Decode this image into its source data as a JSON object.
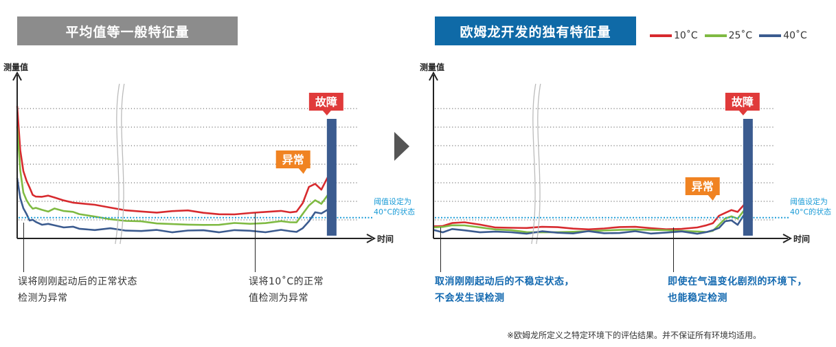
{
  "left_banner": "平均值等一般特征量",
  "right_banner": "欧姆龙开发的独有特征量",
  "legend": [
    {
      "label": "10˚C",
      "color": "#d72a2e"
    },
    {
      "label": "25˚C",
      "color": "#7fba42"
    },
    {
      "label": "40˚C",
      "color": "#3b5b8f"
    }
  ],
  "y_axis_label": "测量值",
  "x_axis_label": "时间",
  "fault_label": "故障",
  "abnormal_label": "异常",
  "threshold_label_1": "阈值设定为",
  "threshold_label_2": "40°C的状态",
  "colors": {
    "fault": "#e03a3a",
    "abnormal": "#f08322",
    "threshold": "#1a9bd7",
    "fault_bar": "#3b5b8f"
  },
  "left_captions": {
    "a_line1": "误将刚刚起动后的正常状态",
    "a_line2": "检测为异常",
    "b_line1": "误将10˚C的正常",
    "b_line2": "值检测为异常"
  },
  "right_captions": {
    "a_line1": "取消刚刚起动后的不稳定状态，",
    "a_line2": "不会发生误检测",
    "b_line1": "即使在气温变化剧烈的环境下，",
    "b_line2": "也能稳定检测"
  },
  "footnote": "※欧姆龙所定义之特定环境下的评估结果。并不保证所有环境均适用。",
  "chart_data": [
    {
      "type": "line",
      "title": "平均值等一般特征量",
      "ylabel": "测量值",
      "xlabel": "时间",
      "x": [
        0,
        1,
        2,
        3,
        4,
        5,
        6,
        8,
        10,
        12,
        15,
        18,
        20,
        25,
        30,
        35,
        40,
        45,
        50,
        55,
        60,
        65,
        70,
        75,
        80,
        85,
        88,
        90,
        92,
        94,
        96,
        98,
        100
      ],
      "xlim": [
        0,
        108
      ],
      "ylim": [
        0,
        100
      ],
      "threshold": 14,
      "series": [
        {
          "name": "10˚C",
          "values": [
            90,
            60,
            45,
            38,
            34,
            30,
            29,
            28,
            28,
            27,
            26,
            25,
            24,
            22,
            20,
            19,
            19,
            18,
            18,
            18,
            17,
            17,
            17,
            17,
            17,
            18,
            18,
            19,
            24,
            34,
            36,
            33,
            42
          ]
        },
        {
          "name": "25˚C",
          "values": [
            75,
            45,
            30,
            25,
            22,
            20,
            21,
            20,
            19,
            21,
            19,
            18,
            16,
            14,
            12,
            11,
            11,
            10,
            10,
            10,
            10,
            10,
            11,
            10,
            10,
            11,
            10,
            10,
            16,
            22,
            26,
            24,
            30
          ]
        },
        {
          "name": "40˚C",
          "values": [
            40,
            28,
            20,
            16,
            13,
            12,
            11,
            10,
            9,
            9,
            8,
            7,
            7,
            6,
            6,
            6,
            5,
            5,
            5,
            5,
            5,
            5,
            5,
            5,
            5,
            5,
            5,
            5,
            6,
            12,
            18,
            16,
            20
          ]
        }
      ],
      "fault_bar": {
        "x": 100,
        "value": 100
      }
    },
    {
      "type": "line",
      "title": "欧姆龙开发的独有特征量",
      "ylabel": "测量值",
      "xlabel": "时间",
      "x": [
        0,
        3,
        6,
        10,
        15,
        20,
        25,
        30,
        35,
        40,
        45,
        50,
        55,
        60,
        65,
        70,
        75,
        80,
        85,
        88,
        90,
        92,
        94,
        96,
        98,
        100
      ],
      "xlim": [
        0,
        108
      ],
      "ylim": [
        0,
        100
      ],
      "threshold": 14,
      "series": [
        {
          "name": "10˚C",
          "values": [
            9,
            9,
            10,
            10,
            9,
            8,
            8,
            7,
            7,
            7,
            7,
            7,
            7,
            7,
            7,
            7,
            7,
            7,
            7,
            8,
            10,
            16,
            18,
            19,
            17,
            22
          ]
        },
        {
          "name": "25˚C",
          "values": [
            7,
            7,
            8,
            8,
            7,
            6,
            6,
            5,
            5,
            5,
            5,
            5,
            5,
            5,
            5,
            5,
            5,
            5,
            5,
            5,
            6,
            10,
            14,
            15,
            13,
            18
          ]
        },
        {
          "name": "40˚C",
          "values": [
            5,
            5,
            6,
            5,
            5,
            4,
            4,
            4,
            4,
            4,
            4,
            4,
            4,
            4,
            4,
            4,
            4,
            4,
            4,
            4,
            5,
            8,
            11,
            12,
            10,
            15
          ]
        }
      ],
      "fault_bar": {
        "x": 100,
        "value": 100
      }
    }
  ]
}
